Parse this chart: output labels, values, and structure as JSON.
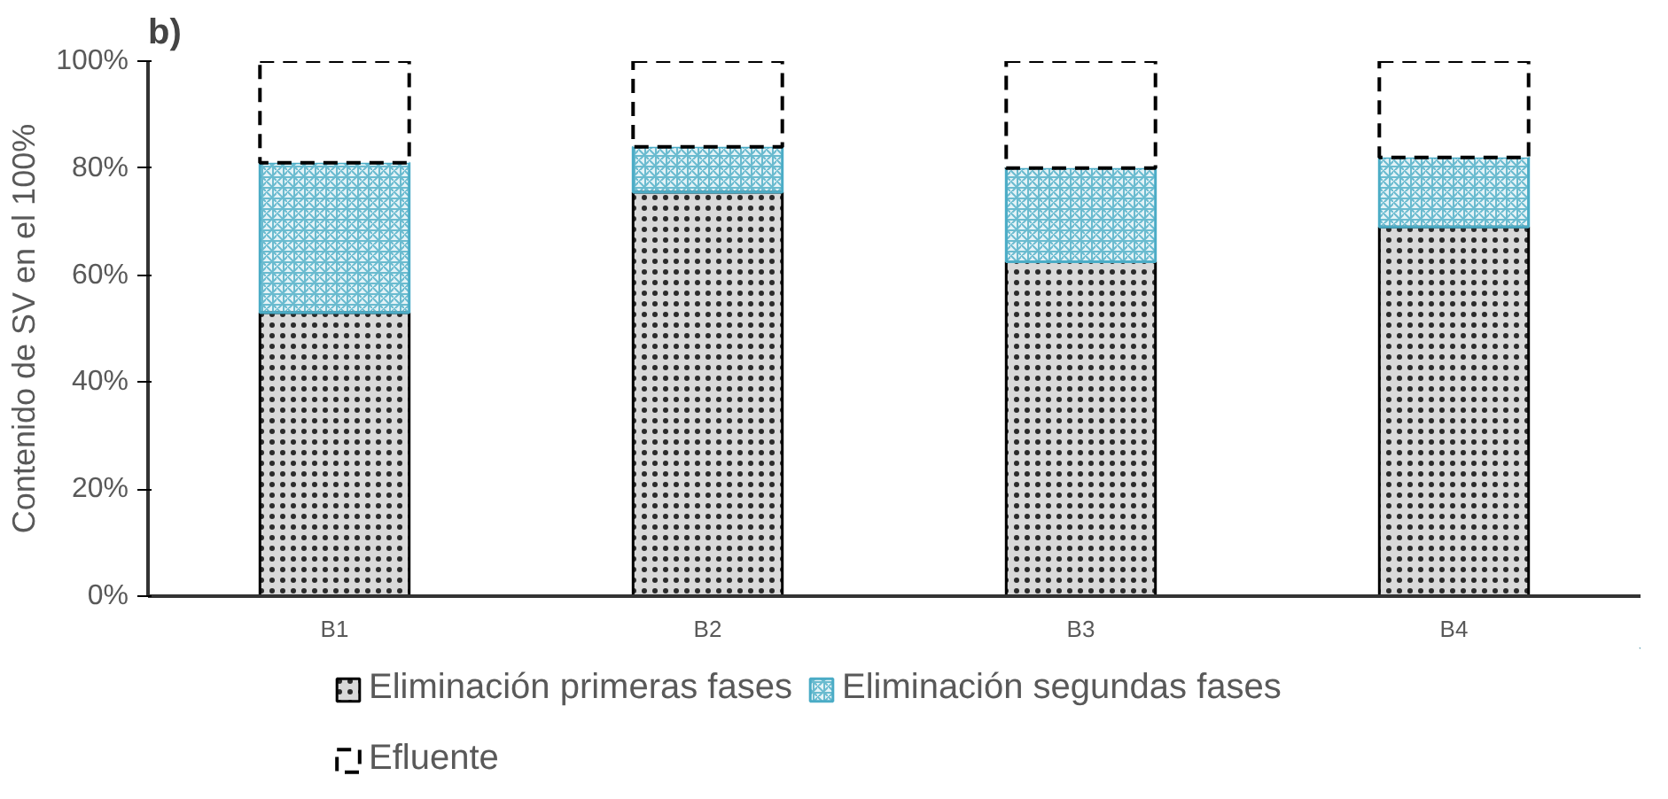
{
  "chart_data": {
    "type": "bar",
    "title": "b)",
    "ylabel": "Contenido de SV en el 100%",
    "categories": [
      "B1",
      "B2",
      "B3",
      "B4"
    ],
    "stacked": true,
    "series": [
      {
        "name": "Eliminación primeras fases",
        "color": "#000000",
        "values": [
          53,
          75.5,
          62.5,
          69
        ]
      },
      {
        "name": "Eliminación segundas fases",
        "color": "#4bacc6",
        "values": [
          28,
          8.5,
          17.5,
          13
        ]
      },
      {
        "name": "Efluente",
        "color": "#000000",
        "line_style": "dashed",
        "values": [
          19,
          16,
          20,
          18
        ]
      }
    ],
    "ylim": [
      0,
      100
    ],
    "yticks": [
      {
        "value": 0,
        "label": "0%"
      },
      {
        "value": 20,
        "label": "20%"
      },
      {
        "value": 40,
        "label": "40%"
      },
      {
        "value": 60,
        "label": "60%"
      },
      {
        "value": 80,
        "label": "80%"
      },
      {
        "value": 100,
        "label": "100%"
      }
    ],
    "grid": false,
    "legend": "bottom"
  }
}
